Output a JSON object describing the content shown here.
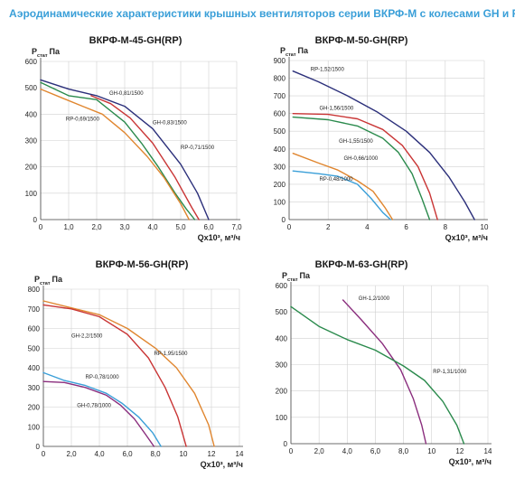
{
  "page_title": "Аэродинамические характеристики крышных вентиляторов серии ВКРФ-М с колесами GH и RP",
  "chart_data": [
    {
      "type": "line",
      "title": "ВКРФ-М-45-GH(RP)",
      "ylabel_main": "P",
      "ylabel_sub": "стат",
      "ylabel_unit": "Па",
      "xlabel": "Qx10³, м³/ч",
      "xlim": [
        0,
        7
      ],
      "ylim": [
        0,
        600
      ],
      "xticks": [
        "0",
        "1,0",
        "2,0",
        "3,0",
        "4,0",
        "5,0",
        "6,0",
        "7,0"
      ],
      "yticks": [
        "0",
        "100",
        "200",
        "300",
        "400",
        "500",
        "600"
      ],
      "xtick_values": [
        0,
        1,
        2,
        3,
        4,
        5,
        6,
        7
      ],
      "ytick_values": [
        0,
        100,
        200,
        300,
        400,
        500,
        600
      ],
      "grid": true,
      "series": [
        {
          "name": "GH-0,81/1500",
          "color": "#2b2f7a",
          "x": [
            0,
            1.0,
            2.0,
            3.0,
            4.0,
            5.0,
            5.6,
            6.0
          ],
          "y": [
            530,
            495,
            470,
            430,
            345,
            210,
            100,
            0
          ]
        },
        {
          "name": "GH-0,83/1500",
          "color": "#c93535",
          "x": [
            1.8,
            2.5,
            3.2,
            4.0,
            4.8,
            5.4,
            5.65
          ],
          "y": [
            470,
            440,
            385,
            290,
            160,
            45,
            0
          ]
        },
        {
          "name": "RP-0,71/1500",
          "color": "#2a8a4c",
          "x": [
            0,
            1.0,
            2.0,
            3.0,
            3.6,
            4.2,
            4.8,
            5.2,
            5.5
          ],
          "y": [
            520,
            470,
            455,
            370,
            290,
            200,
            100,
            40,
            0
          ]
        },
        {
          "name": "RP-0,69/1500",
          "color": "#e0862f",
          "x": [
            0,
            0.8,
            1.5,
            2.2,
            3.0,
            3.8,
            4.4,
            5.0,
            5.3
          ],
          "y": [
            495,
            460,
            430,
            400,
            330,
            240,
            160,
            60,
            0
          ]
        }
      ],
      "annotations": [
        {
          "text": "GH-0,81/1500",
          "x": 2.45,
          "y": 473
        },
        {
          "text": "RP-0,69/1500",
          "x": 0.9,
          "y": 375
        },
        {
          "text": "GH-0,83/1500",
          "x": 4.0,
          "y": 362
        },
        {
          "text": "RP-0,71/1500",
          "x": 5.0,
          "y": 268
        }
      ]
    },
    {
      "type": "line",
      "title": "ВКРФ-М-50-GH(RP)",
      "ylabel_main": "P",
      "ylabel_sub": "стат",
      "ylabel_unit": "Па",
      "xlabel": "Qx10³, м³/ч",
      "xlim": [
        0,
        10
      ],
      "ylim": [
        0,
        900
      ],
      "xticks": [
        "0",
        "2",
        "4",
        "6",
        "8",
        "10"
      ],
      "yticks": [
        "0",
        "100",
        "200",
        "300",
        "400",
        "500",
        "600",
        "700",
        "800",
        "900"
      ],
      "xtick_values": [
        0,
        2,
        4,
        6,
        8,
        10
      ],
      "ytick_values": [
        0,
        100,
        200,
        300,
        400,
        500,
        600,
        700,
        800,
        900
      ],
      "grid": true,
      "series": [
        {
          "name": "RP-1,52/1500",
          "color": "#2b2f7a",
          "x": [
            0.2,
            1.5,
            3.0,
            4.5,
            6.0,
            7.2,
            8.2,
            9.0,
            9.5
          ],
          "y": [
            840,
            780,
            700,
            610,
            500,
            380,
            240,
            100,
            0
          ]
        },
        {
          "name": "GH-1,56/1500",
          "color": "#c93535",
          "x": [
            0.2,
            2.0,
            3.5,
            4.8,
            5.8,
            6.6,
            7.2,
            7.6
          ],
          "y": [
            600,
            595,
            570,
            510,
            420,
            300,
            150,
            0
          ]
        },
        {
          "name": "GH-1,55/1500",
          "color": "#2a8a4c",
          "x": [
            0.2,
            2.0,
            3.5,
            4.8,
            5.6,
            6.3,
            6.8,
            7.2
          ],
          "y": [
            580,
            565,
            530,
            460,
            380,
            260,
            120,
            0
          ]
        },
        {
          "name": "GH-0,66/1000",
          "color": "#e0862f",
          "x": [
            0.2,
            1.5,
            2.5,
            3.5,
            4.3,
            4.9,
            5.3
          ],
          "y": [
            375,
            320,
            280,
            220,
            160,
            70,
            0
          ]
        },
        {
          "name": "RP-0,48/1000",
          "color": "#3a9fd8",
          "x": [
            0.2,
            1.5,
            2.5,
            3.5,
            4.2,
            4.8,
            5.2
          ],
          "y": [
            275,
            260,
            245,
            200,
            120,
            40,
            0
          ]
        }
      ],
      "annotations": [
        {
          "text": "RP-1,52/1500",
          "x": 1.1,
          "y": 840
        },
        {
          "text": "GH-1,56/1500",
          "x": 1.55,
          "y": 622
        },
        {
          "text": "GH-1,55/1500",
          "x": 2.55,
          "y": 435
        },
        {
          "text": "GH-0,66/1000",
          "x": 2.8,
          "y": 338
        },
        {
          "text": "RP-0,48/1000",
          "x": 1.55,
          "y": 220
        }
      ]
    },
    {
      "type": "line",
      "title": "ВКРФ-М-56-GH(RP)",
      "ylabel_main": "P",
      "ylabel_sub": "стат",
      "ylabel_unit": "Па",
      "xlabel": "Qx10³, м³/ч",
      "xlim": [
        0,
        14
      ],
      "ylim": [
        0,
        800
      ],
      "xticks": [
        "0",
        "2,0",
        "4,0",
        "6,0",
        "8,0",
        "10",
        "12",
        "14"
      ],
      "yticks": [
        "0",
        "100",
        "200",
        "300",
        "400",
        "500",
        "600",
        "700",
        "800"
      ],
      "xtick_values": [
        0,
        2,
        4,
        6,
        8,
        10,
        12,
        14
      ],
      "ytick_values": [
        0,
        100,
        200,
        300,
        400,
        500,
        600,
        700,
        800
      ],
      "grid": true,
      "series": [
        {
          "name": "RP-1,95/1500",
          "color": "#e0862f",
          "x": [
            0,
            2.0,
            4.0,
            6.0,
            8.0,
            9.5,
            10.8,
            11.8,
            12.2
          ],
          "y": [
            740,
            705,
            670,
            600,
            500,
            400,
            270,
            110,
            0
          ]
        },
        {
          "name": "GH-2,2/1500",
          "color": "#c93535",
          "x": [
            0,
            2.0,
            4.0,
            6.0,
            7.5,
            8.7,
            9.6,
            10.2
          ],
          "y": [
            720,
            700,
            660,
            570,
            450,
            300,
            150,
            0
          ]
        },
        {
          "name": "RP-0,78/1000",
          "color": "#3a9fd8",
          "x": [
            0,
            1.5,
            3.0,
            4.5,
            5.6,
            6.8,
            7.8,
            8.4
          ],
          "y": [
            375,
            335,
            310,
            270,
            220,
            150,
            70,
            0
          ]
        },
        {
          "name": "GH-0,78/1000",
          "color": "#8a2d7d",
          "x": [
            0,
            1.5,
            3.0,
            4.5,
            5.5,
            6.5,
            7.3,
            7.9
          ],
          "y": [
            330,
            325,
            300,
            260,
            210,
            140,
            60,
            0
          ]
        }
      ],
      "annotations": [
        {
          "text": "GH-2,2/1500",
          "x": 2.0,
          "y": 555
        },
        {
          "text": "RP-1,95/1500",
          "x": 7.9,
          "y": 465
        },
        {
          "text": "RP-0,78/1000",
          "x": 3.0,
          "y": 345
        },
        {
          "text": "GH-0,78/1000",
          "x": 2.4,
          "y": 200
        }
      ]
    },
    {
      "type": "line",
      "title": "ВКРФ-М-63-GH(RP)",
      "ylabel_main": "P",
      "ylabel_sub": "стат",
      "ylabel_unit": "Па",
      "xlabel": "Qx10³, м³/ч",
      "xlim": [
        0,
        14
      ],
      "ylim": [
        0,
        600
      ],
      "xticks": [
        "0",
        "2,0",
        "4,0",
        "6,0",
        "8,0",
        "10",
        "12",
        "14"
      ],
      "yticks": [
        "0",
        "100",
        "200",
        "300",
        "400",
        "500",
        "600"
      ],
      "xtick_values": [
        0,
        2,
        4,
        6,
        8,
        10,
        12,
        14
      ],
      "ytick_values": [
        0,
        100,
        200,
        300,
        400,
        500,
        600
      ],
      "grid": true,
      "series": [
        {
          "name": "GH-1,2/1000",
          "color": "#8a2d7d",
          "x": [
            3.7,
            5.0,
            6.5,
            7.8,
            8.7,
            9.3,
            9.6
          ],
          "y": [
            545,
            470,
            380,
            280,
            170,
            70,
            0
          ]
        },
        {
          "name": "RP-1,31/1000",
          "color": "#2a8a4c",
          "x": [
            0,
            2.0,
            4.0,
            6.0,
            8.0,
            9.5,
            10.8,
            11.8,
            12.3
          ],
          "y": [
            520,
            445,
            395,
            355,
            295,
            240,
            160,
            70,
            0
          ]
        }
      ],
      "annotations": [
        {
          "text": "GH-1,2/1000",
          "x": 4.8,
          "y": 545
        },
        {
          "text": "RP-1,31/1000",
          "x": 10.1,
          "y": 268
        }
      ]
    }
  ]
}
